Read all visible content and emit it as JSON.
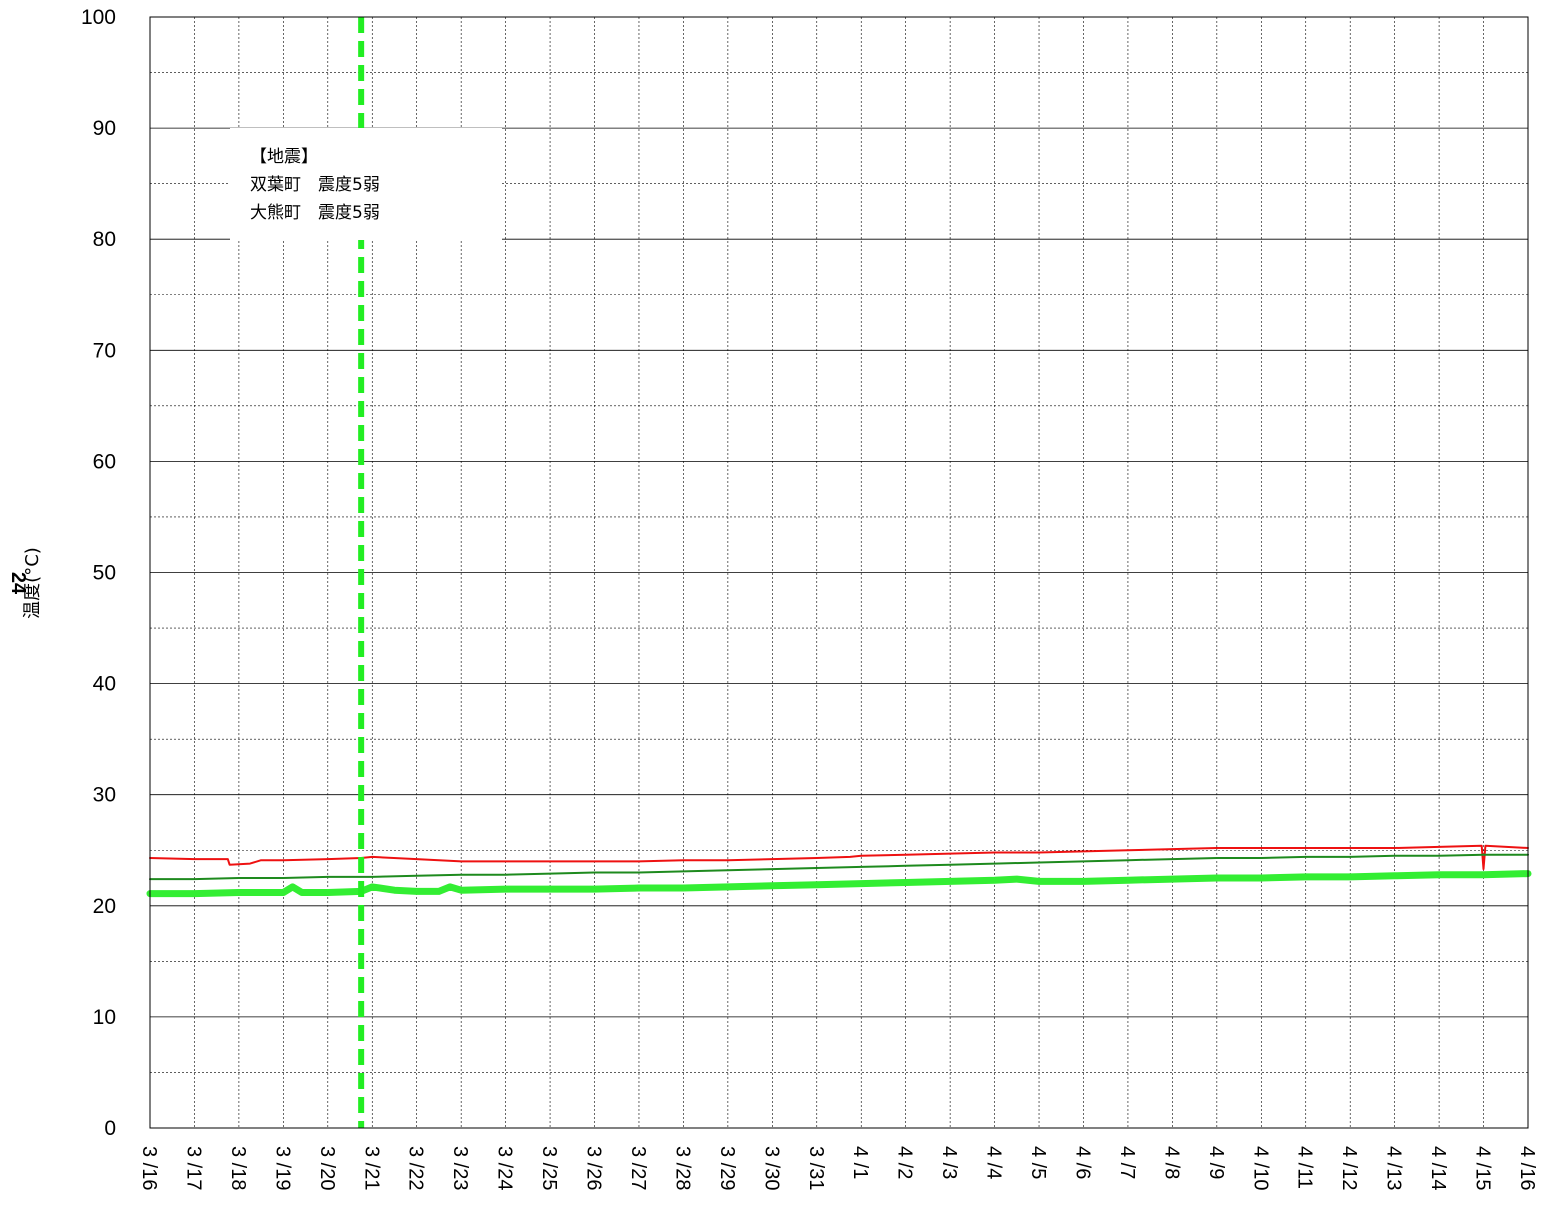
{
  "chart_data": {
    "type": "line",
    "title": "",
    "xlabel": "",
    "ylabel": "温度(°C)",
    "ylabel_number": "24",
    "ylim": [
      0,
      100
    ],
    "y_ticks": [
      0,
      10,
      20,
      30,
      40,
      50,
      60,
      70,
      80,
      90,
      100
    ],
    "x_range": [
      "3/16",
      "4/16"
    ],
    "x_tick_labels": [
      "3/16",
      "3/17",
      "3/18",
      "3/19",
      "3/20",
      "3/21",
      "3/22",
      "3/23",
      "3/24",
      "3/25",
      "3/26",
      "3/27",
      "3/28",
      "3/29",
      "3/30",
      "3/31",
      "4/1",
      "4/2",
      "4/3",
      "4/4",
      "4/5",
      "4/6",
      "4/7",
      "4/8",
      "4/9",
      "4/10",
      "4/11",
      "4/12",
      "4/13",
      "4/14",
      "4/15",
      "4/16"
    ],
    "grid": true,
    "event_marker": {
      "date": "3/20",
      "hour": 18,
      "color": "#22ee22",
      "style": "dashed"
    },
    "annotation": {
      "lines": [
        "【地震】",
        "双葉町　震度5弱",
        "大熊町　震度5弱"
      ]
    },
    "series": [
      {
        "color": "#ee1111",
        "width": 2,
        "points": [
          [
            "3/16",
            24.3
          ],
          [
            "3/17",
            24.2
          ],
          [
            "3/17 18h",
            24.2
          ],
          [
            "3/17 19h",
            23.7
          ],
          [
            "3/18 6h",
            23.8
          ],
          [
            "3/18 12h",
            24.1
          ],
          [
            "3/19",
            24.1
          ],
          [
            "3/20",
            24.2
          ],
          [
            "3/20 18h",
            24.3
          ],
          [
            "3/21",
            24.4
          ],
          [
            "3/22",
            24.2
          ],
          [
            "3/23",
            24.0
          ],
          [
            "3/24",
            24.0
          ],
          [
            "3/25",
            24.0
          ],
          [
            "3/26",
            24.0
          ],
          [
            "3/27",
            24.0
          ],
          [
            "3/28",
            24.1
          ],
          [
            "3/29",
            24.1
          ],
          [
            "3/30",
            24.2
          ],
          [
            "3/31",
            24.3
          ],
          [
            "3/31 18h",
            24.4
          ],
          [
            "4/1",
            24.5
          ],
          [
            "4/2",
            24.6
          ],
          [
            "4/3",
            24.7
          ],
          [
            "4/4",
            24.8
          ],
          [
            "4/5",
            24.8
          ],
          [
            "4/6",
            24.9
          ],
          [
            "4/7",
            25.0
          ],
          [
            "4/8",
            25.1
          ],
          [
            "4/9",
            25.2
          ],
          [
            "4/10",
            25.2
          ],
          [
            "4/11",
            25.2
          ],
          [
            "4/12",
            25.2
          ],
          [
            "4/13",
            25.2
          ],
          [
            "4/14",
            25.3
          ],
          [
            "4/14 23h",
            25.4
          ],
          [
            "4/15",
            23.3
          ],
          [
            "4/15 1h",
            25.4
          ],
          [
            "4/16",
            25.2
          ]
        ]
      },
      {
        "color": "#1e8a1e",
        "width": 2,
        "points": [
          [
            "3/16",
            22.4
          ],
          [
            "3/17",
            22.4
          ],
          [
            "3/18",
            22.5
          ],
          [
            "3/19",
            22.5
          ],
          [
            "3/20",
            22.6
          ],
          [
            "3/21",
            22.6
          ],
          [
            "3/22",
            22.7
          ],
          [
            "3/23",
            22.8
          ],
          [
            "3/24",
            22.8
          ],
          [
            "3/25",
            22.9
          ],
          [
            "3/26",
            23.0
          ],
          [
            "3/27",
            23.0
          ],
          [
            "3/28",
            23.1
          ],
          [
            "3/29",
            23.2
          ],
          [
            "3/30",
            23.3
          ],
          [
            "3/31",
            23.4
          ],
          [
            "4/1",
            23.5
          ],
          [
            "4/2",
            23.6
          ],
          [
            "4/3",
            23.7
          ],
          [
            "4/4",
            23.8
          ],
          [
            "4/5",
            23.9
          ],
          [
            "4/6",
            24.0
          ],
          [
            "4/7",
            24.1
          ],
          [
            "4/8",
            24.2
          ],
          [
            "4/9",
            24.3
          ],
          [
            "4/10",
            24.3
          ],
          [
            "4/11",
            24.4
          ],
          [
            "4/12",
            24.4
          ],
          [
            "4/13",
            24.5
          ],
          [
            "4/14",
            24.5
          ],
          [
            "4/15",
            24.6
          ],
          [
            "4/16",
            24.6
          ]
        ]
      },
      {
        "color": "#33ee33",
        "width": 7,
        "points": [
          [
            "3/16",
            21.1
          ],
          [
            "3/17",
            21.1
          ],
          [
            "3/18",
            21.2
          ],
          [
            "3/19",
            21.2
          ],
          [
            "3/19 5h",
            21.7
          ],
          [
            "3/19 10h",
            21.2
          ],
          [
            "3/20",
            21.2
          ],
          [
            "3/20 18h",
            21.3
          ],
          [
            "3/21",
            21.7
          ],
          [
            "3/21 12h",
            21.4
          ],
          [
            "3/22",
            21.3
          ],
          [
            "3/22 12h",
            21.3
          ],
          [
            "3/22 18h",
            21.7
          ],
          [
            "3/23",
            21.4
          ],
          [
            "3/24",
            21.5
          ],
          [
            "3/25",
            21.5
          ],
          [
            "3/26",
            21.5
          ],
          [
            "3/27",
            21.6
          ],
          [
            "3/28",
            21.6
          ],
          [
            "3/29",
            21.7
          ],
          [
            "3/30",
            21.8
          ],
          [
            "3/31",
            21.9
          ],
          [
            "4/1",
            22.0
          ],
          [
            "4/2",
            22.1
          ],
          [
            "4/3",
            22.2
          ],
          [
            "4/4",
            22.3
          ],
          [
            "4/4 12h",
            22.4
          ],
          [
            "4/5",
            22.2
          ],
          [
            "4/6",
            22.2
          ],
          [
            "4/7",
            22.3
          ],
          [
            "4/8",
            22.4
          ],
          [
            "4/9",
            22.5
          ],
          [
            "4/10",
            22.5
          ],
          [
            "4/11",
            22.6
          ],
          [
            "4/12",
            22.6
          ],
          [
            "4/13",
            22.7
          ],
          [
            "4/14",
            22.8
          ],
          [
            "4/15",
            22.8
          ],
          [
            "4/16",
            22.9
          ]
        ]
      }
    ]
  }
}
